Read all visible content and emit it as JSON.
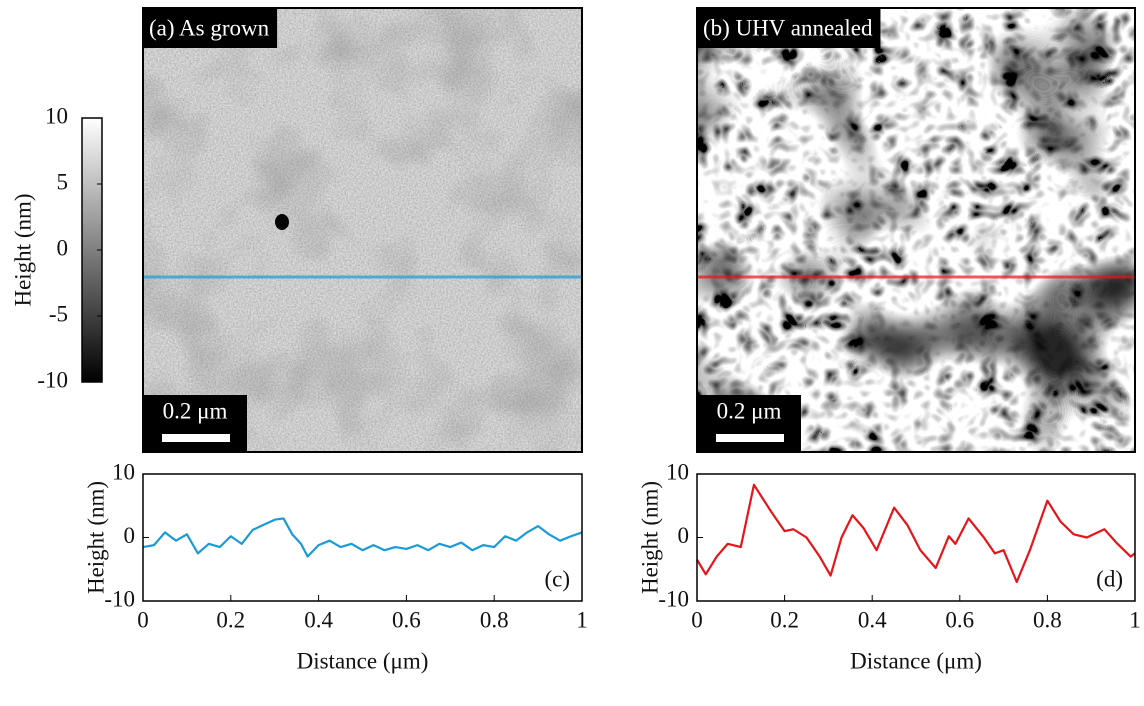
{
  "chart_data": [
    {
      "type": "image",
      "title": "(a) As grown",
      "scale_bar": "0.2 μm"
    },
    {
      "type": "image",
      "title": "(b) UHV annealed",
      "scale_bar": "0.2 μm"
    },
    {
      "type": "colorbar",
      "label": "Height (nm)",
      "ylim": [
        -10,
        10
      ],
      "yticks": [
        -10,
        -5,
        0,
        5,
        10
      ],
      "colors": [
        "#000000",
        "#ffffff"
      ]
    },
    {
      "type": "line",
      "annotation": "(c)",
      "xlabel": "Distance (μm)",
      "ylabel": "Height (nm)",
      "xlim": [
        0,
        1
      ],
      "ylim": [
        -10,
        10
      ],
      "xticks": [
        0,
        0.2,
        0.4,
        0.6,
        0.8,
        1
      ],
      "yticks": [
        -10,
        0,
        10
      ],
      "series": [
        {
          "color": "#1a9bd7",
          "x": [
            0,
            0.025,
            0.05,
            0.075,
            0.1,
            0.125,
            0.15,
            0.175,
            0.2,
            0.225,
            0.25,
            0.275,
            0.3,
            0.32,
            0.34,
            0.36,
            0.375,
            0.4,
            0.425,
            0.45,
            0.475,
            0.5,
            0.525,
            0.55,
            0.575,
            0.6,
            0.625,
            0.65,
            0.675,
            0.7,
            0.725,
            0.75,
            0.775,
            0.8,
            0.825,
            0.85,
            0.875,
            0.9,
            0.925,
            0.95,
            0.975,
            1
          ],
          "values": [
            -1.5,
            -1.2,
            0.8,
            -0.5,
            0.5,
            -2.5,
            -1,
            -1.5,
            0.2,
            -1,
            1.2,
            2,
            2.8,
            3,
            0.5,
            -1,
            -3,
            -1.2,
            -0.5,
            -1.5,
            -1,
            -2,
            -1.2,
            -2,
            -1.5,
            -1.8,
            -1.2,
            -2,
            -1,
            -1.5,
            -0.8,
            -2,
            -1.2,
            -1.5,
            0.2,
            -0.5,
            0.8,
            1.8,
            0.5,
            -0.5,
            0.2,
            0.8
          ]
        }
      ]
    },
    {
      "type": "line",
      "annotation": "(d)",
      "xlabel": "Distance (μm)",
      "ylabel": "Height (nm)",
      "xlim": [
        0,
        1
      ],
      "ylim": [
        -10,
        10
      ],
      "xticks": [
        0,
        0.2,
        0.4,
        0.6,
        0.8,
        1
      ],
      "yticks": [
        -10,
        0,
        10
      ],
      "series": [
        {
          "color": "#e8141a",
          "x": [
            0,
            0.02,
            0.045,
            0.07,
            0.1,
            0.13,
            0.17,
            0.2,
            0.22,
            0.25,
            0.28,
            0.305,
            0.33,
            0.355,
            0.38,
            0.41,
            0.45,
            0.48,
            0.51,
            0.545,
            0.575,
            0.59,
            0.62,
            0.655,
            0.68,
            0.7,
            0.73,
            0.76,
            0.8,
            0.83,
            0.86,
            0.89,
            0.93,
            0.96,
            0.99,
            1
          ],
          "values": [
            -3.5,
            -5.8,
            -3,
            -1,
            -1.5,
            8.3,
            4,
            1,
            1.3,
            0,
            -3,
            -6,
            0,
            3.5,
            1.5,
            -2,
            4.7,
            2,
            -2,
            -4.8,
            0.2,
            -1,
            3,
            0,
            -2.5,
            -2,
            -7,
            -2,
            5.8,
            2.5,
            0.5,
            0,
            1.3,
            -1,
            -3,
            -2.5
          ]
        }
      ]
    }
  ]
}
